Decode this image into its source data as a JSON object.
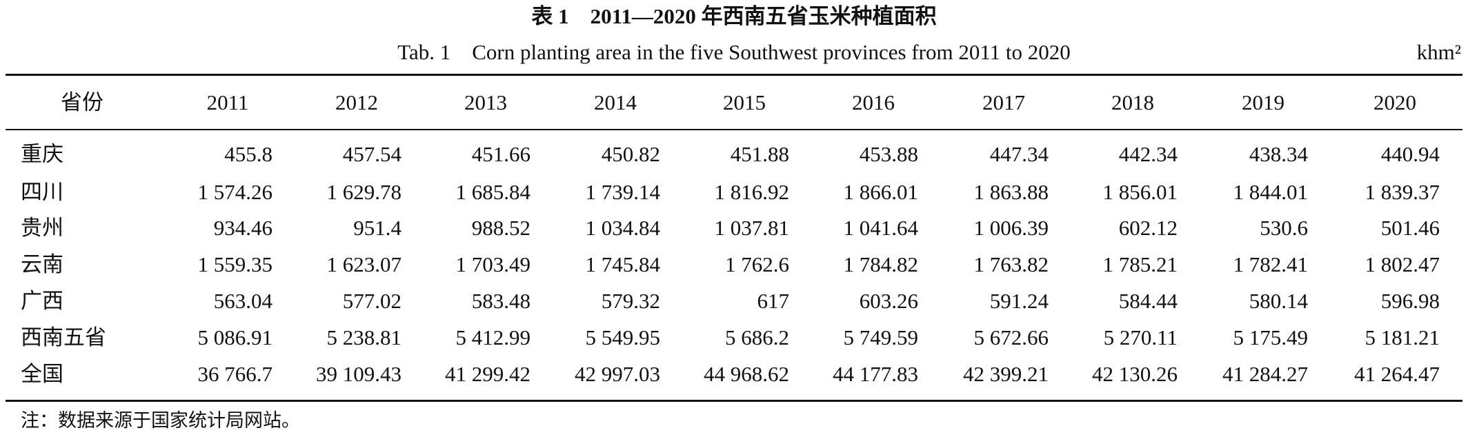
{
  "title": "表 1　2011—2020 年西南五省玉米种植面积",
  "subtitle": "Tab. 1　Corn planting area in the five Southwest provinces from 2011 to 2020",
  "unit": "khm²",
  "table": {
    "header": [
      "省份",
      "2011",
      "2012",
      "2013",
      "2014",
      "2015",
      "2016",
      "2017",
      "2018",
      "2019",
      "2020"
    ],
    "rows": [
      [
        "重庆",
        "455.8",
        "457.54",
        "451.66",
        "450.82",
        "451.88",
        "453.88",
        "447.34",
        "442.34",
        "438.34",
        "440.94"
      ],
      [
        "四川",
        "1 574.26",
        "1 629.78",
        "1 685.84",
        "1 739.14",
        "1 816.92",
        "1 866.01",
        "1 863.88",
        "1 856.01",
        "1 844.01",
        "1 839.37"
      ],
      [
        "贵州",
        "934.46",
        "951.4",
        "988.52",
        "1 034.84",
        "1 037.81",
        "1 041.64",
        "1 006.39",
        "602.12",
        "530.6",
        "501.46"
      ],
      [
        "云南",
        "1 559.35",
        "1 623.07",
        "1 703.49",
        "1 745.84",
        "1 762.6",
        "1 784.82",
        "1 763.82",
        "1 785.21",
        "1 782.41",
        "1 802.47"
      ],
      [
        "广西",
        "563.04",
        "577.02",
        "583.48",
        "579.32",
        "617",
        "603.26",
        "591.24",
        "584.44",
        "580.14",
        "596.98"
      ],
      [
        "西南五省",
        "5 086.91",
        "5 238.81",
        "5 412.99",
        "5 549.95",
        "5 686.2",
        "5 749.59",
        "5 672.66",
        "5 270.11",
        "5 175.49",
        "5 181.21"
      ],
      [
        "全国",
        "36 766.7",
        "39 109.43",
        "41 299.42",
        "42 997.03",
        "44 968.62",
        "44 177.83",
        "42 399.21",
        "42 130.26",
        "41 284.27",
        "41 264.47"
      ]
    ]
  },
  "note": "注：数据来源于国家统计局网站。"
}
